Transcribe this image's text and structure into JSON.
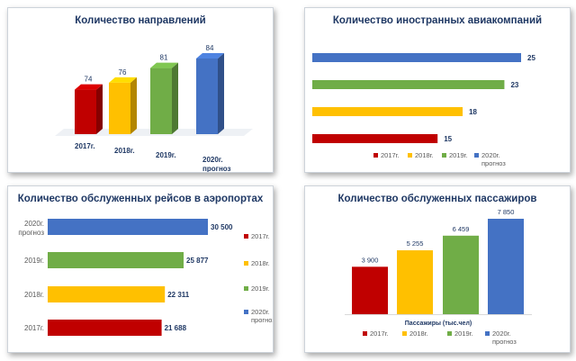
{
  "colors": {
    "c2017": "#c00000",
    "c2018": "#ffc000",
    "c2019": "#70ad47",
    "c2020": "#4472c4",
    "title": "#1f3864",
    "label": "#1f3864"
  },
  "chart_data": [
    {
      "id": "directions",
      "type": "bar",
      "title": "Количество направлений",
      "categories": [
        "2017г.",
        "2018г.",
        "2019г.",
        "2020г. прогноз"
      ],
      "values": [
        74,
        76,
        81,
        84
      ],
      "value_labels": [
        "74",
        "76",
        "81",
        "84"
      ],
      "legend": []
    },
    {
      "id": "airlines",
      "type": "bar",
      "orientation": "horizontal",
      "title": "Количество иностранных авиакомпаний",
      "categories": [
        "2020г. прогноз",
        "2019г.",
        "2018г.",
        "2017г."
      ],
      "values": [
        25,
        23,
        18,
        15
      ],
      "value_labels": [
        "25",
        "23",
        "18",
        "15"
      ],
      "legend": [
        "2017г.",
        "2018г.",
        "2019г.",
        "2020г. прогноз"
      ],
      "legend_position": "bottom"
    },
    {
      "id": "flights",
      "type": "bar",
      "orientation": "horizontal",
      "title": "Количество обслуженных рейсов в аэропортах",
      "categories": [
        "2020г. прогноз",
        "2019г.",
        "2018г.",
        "2017г."
      ],
      "values": [
        30500,
        25877,
        22311,
        21688
      ],
      "value_labels": [
        "30 500",
        "25 877",
        "22 311",
        "21 688"
      ],
      "legend": [
        "2017г.",
        "2018г.",
        "2019г.",
        "2020г. прогноз"
      ],
      "legend_position": "right"
    },
    {
      "id": "passengers",
      "type": "bar",
      "title": "Количество обслуженных пассажиров",
      "xlabel": "Пассажиры (тыс.чел)",
      "categories": [
        "2017г.",
        "2018г.",
        "2019г.",
        "2020г. прогноз"
      ],
      "values": [
        3900,
        5255,
        6459,
        7850
      ],
      "value_labels": [
        "3 900",
        "5 255",
        "6 459",
        "7 850"
      ],
      "legend": [
        "2017г.",
        "2018г.",
        "2019г.",
        "2020г. прогноз"
      ],
      "legend_position": "bottom"
    }
  ]
}
